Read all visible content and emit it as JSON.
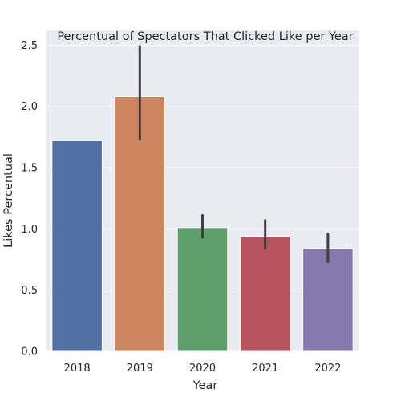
{
  "chart_data": {
    "type": "bar",
    "title": "Percentual of Spectators That Clicked Like per Year",
    "xlabel": "Year",
    "ylabel": "Likes Percentual",
    "categories": [
      "2018",
      "2019",
      "2020",
      "2021",
      "2022"
    ],
    "values": [
      1.72,
      2.08,
      1.01,
      0.94,
      0.84
    ],
    "error_low": [
      1.72,
      1.73,
      0.93,
      0.84,
      0.73
    ],
    "error_high": [
      1.72,
      2.49,
      1.11,
      1.07,
      0.96
    ],
    "colors": [
      "#5471a5",
      "#cd8560",
      "#5f9f6c",
      "#b65560",
      "#8679ae"
    ],
    "ylim": [
      0,
      2.62
    ],
    "yticks": [
      0.0,
      0.5,
      1.0,
      1.5,
      2.0,
      2.5
    ],
    "ytick_labels": [
      "0.0",
      "0.5",
      "1.0",
      "1.5",
      "2.0",
      "2.5"
    ],
    "grid": true,
    "style": {
      "background": "#eaeaf2",
      "grid_color": "#ffffff",
      "errorbar_color": "#404040"
    }
  }
}
